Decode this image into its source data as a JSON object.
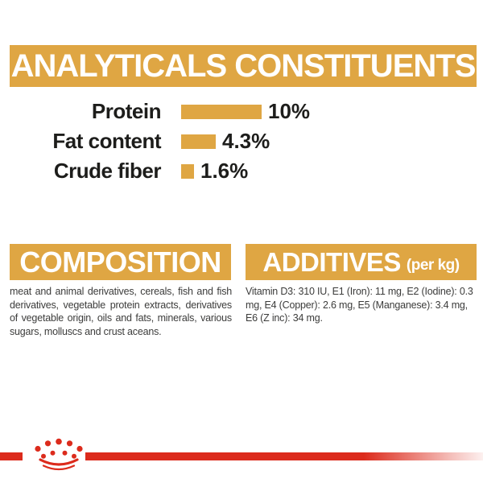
{
  "colors": {
    "gold": "#DFA643",
    "red": "#DC2B1C",
    "ink": "#1d1d1b",
    "body": "#3c3c3b"
  },
  "analyticals": {
    "title": "ANALYTICALS CONSTITUENTS"
  },
  "chart_data": {
    "type": "bar",
    "orientation": "horizontal",
    "title": "ANALYTICALS CONSTITUENTS",
    "categories": [
      "Protein",
      "Fat content",
      "Crude fiber"
    ],
    "values": [
      10,
      4.3,
      1.6
    ],
    "value_labels": [
      "10%",
      "4.3%",
      "1.6%"
    ],
    "unit": "%",
    "xlim": [
      0,
      10
    ],
    "bar_color": "#DFA643",
    "grid": false,
    "legend": false
  },
  "composition": {
    "title": "COMPOSITION",
    "body": "meat and animal derivatives, cereals, fish and fish derivatives, vegetable protein extracts, derivatives of vegetable origin, oils and fats, minerals, various sugars, molluscs and crust aceans."
  },
  "additives": {
    "title": "ADDITIVES",
    "subtitle": "(per kg)",
    "body": "Vitamin D3: 310 IU, E1 (Iron): 11 mg, E2 (Iodine): 0.3 mg, E4 (Copper): 2.6 mg, E5 (Manganese): 3.4 mg, E6 (Z inc): 34 mg."
  },
  "footer": {
    "crown_logo_icon": "royal-canin-crown"
  }
}
